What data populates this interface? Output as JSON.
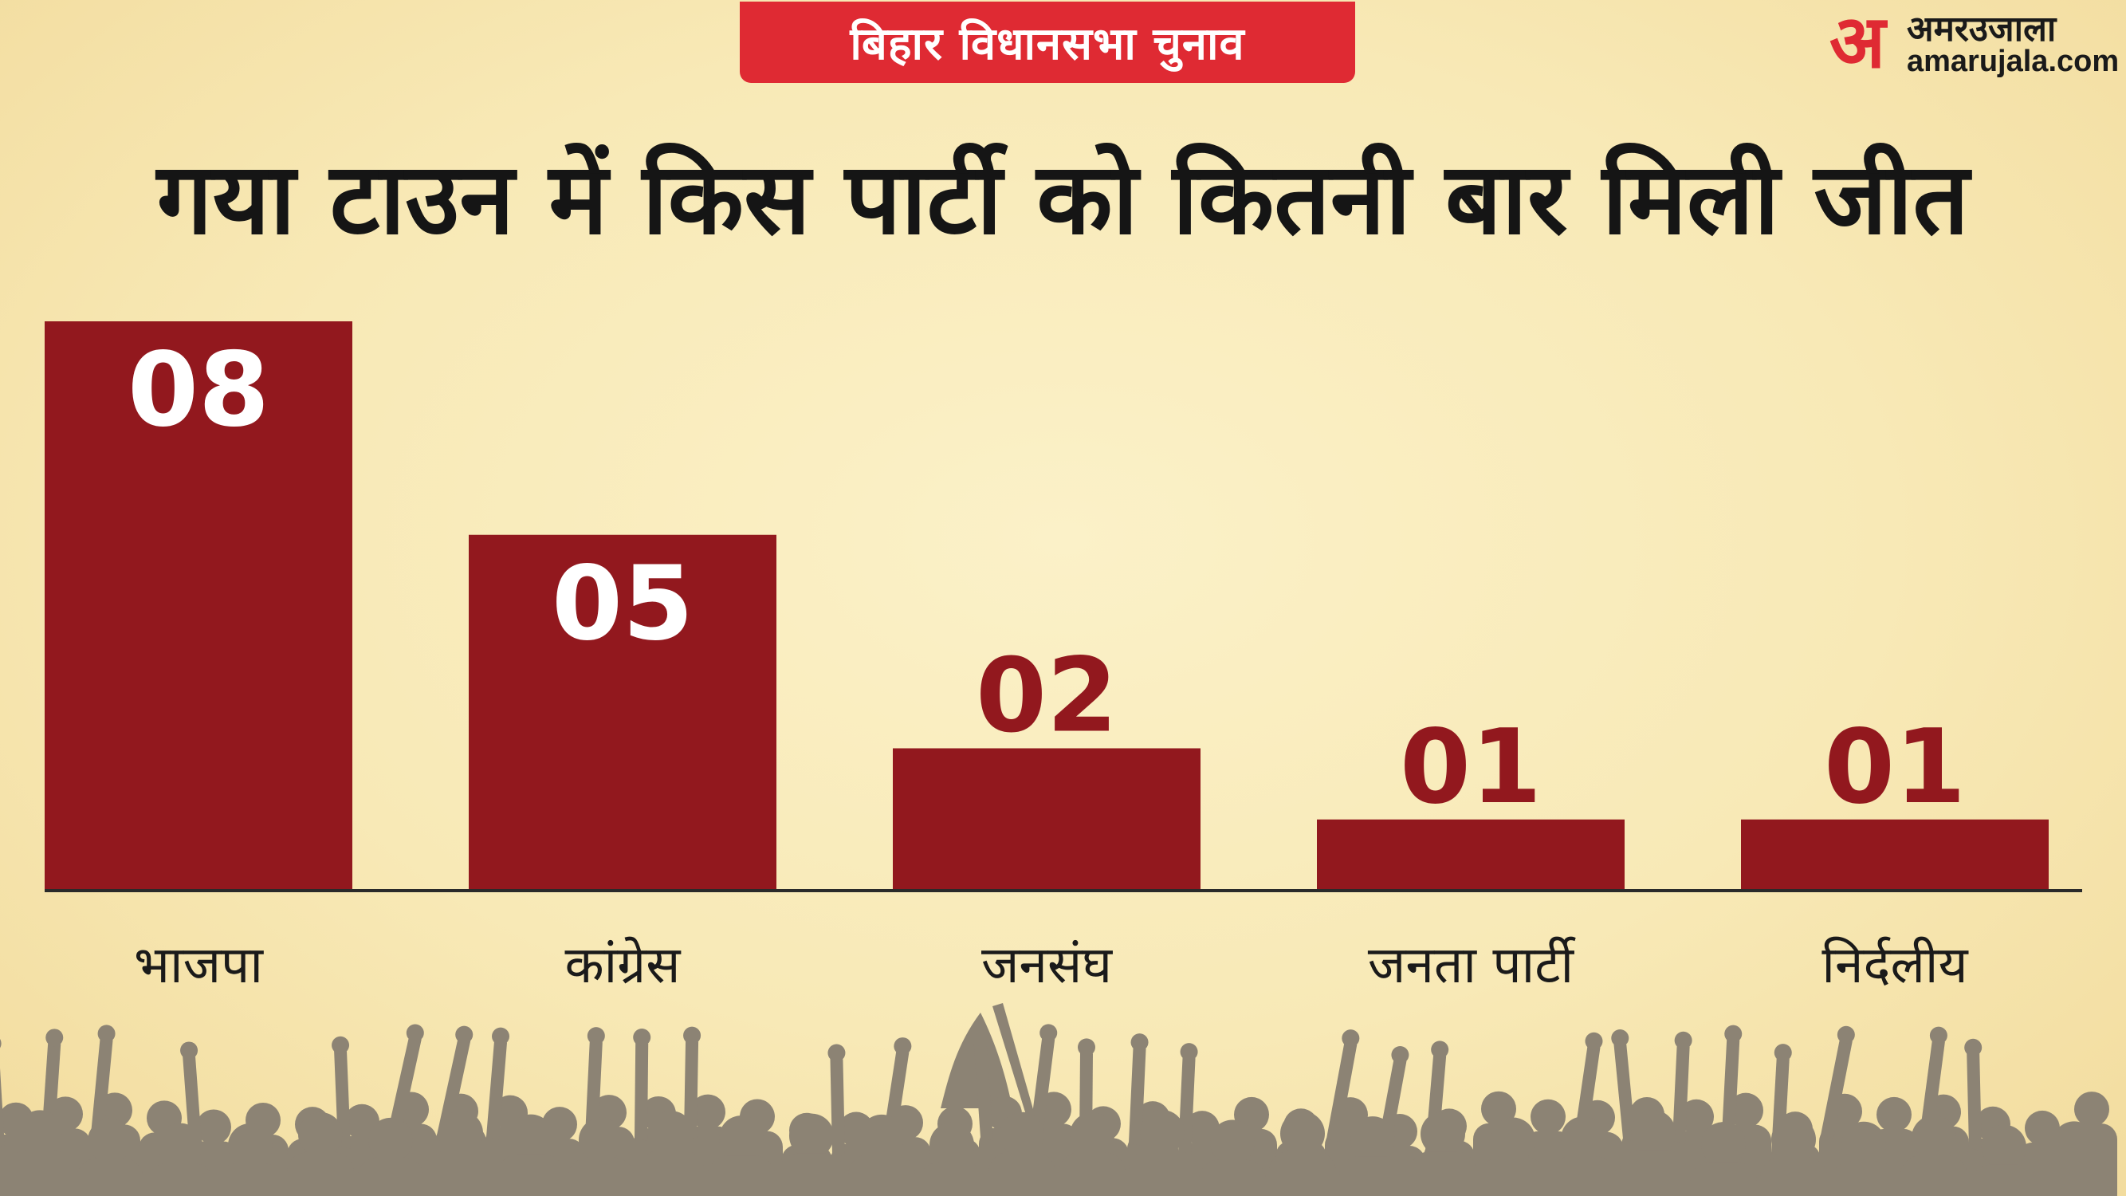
{
  "header": {
    "tag": "बिहार विधानसभा चुनाव",
    "title": "गया टाउन में किस पार्टी को कितनी बार मिली जीत"
  },
  "brand": {
    "mark": "अ",
    "name": "अमरउजाला",
    "site": "amarujala.com"
  },
  "colors": {
    "bar": "#92181e",
    "tag_bg": "#df2a33",
    "brand_red": "#df2a33",
    "value_inside": "#ffffff",
    "value_outside": "#92181e",
    "crowd": "#8c8374",
    "axis": "#2a2a2a"
  },
  "chart_data": {
    "type": "bar",
    "title": "गया टाउन में किस पार्टी को कितनी बार मिली जीत",
    "categories": [
      "भाजपा",
      "कांग्रेस",
      "जनसंघ",
      "जनता पार्टी",
      "निर्दलीय"
    ],
    "values": [
      8,
      5,
      2,
      1,
      1
    ],
    "data_labels": [
      "08",
      "05",
      "02",
      "01",
      "01"
    ],
    "xlabel": "",
    "ylabel": "",
    "ylim": [
      0,
      8
    ],
    "grid": false,
    "legend": "none"
  }
}
